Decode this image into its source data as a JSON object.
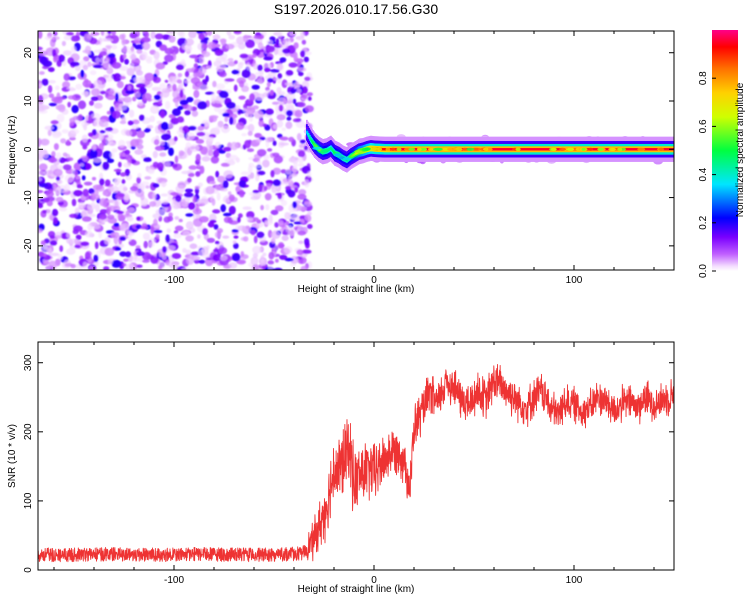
{
  "title": "S197.2026.010.17.56.G30",
  "chart_data": [
    {
      "type": "heatmap",
      "xlabel": "Height of straight line (km)",
      "ylabel": "Frequency (Hz)",
      "xlim": [
        -168,
        150
      ],
      "ylim": [
        -25,
        24.5
      ],
      "xticks": [
        -100,
        0,
        100
      ],
      "yticks": [
        -20,
        -10,
        0,
        10,
        20
      ],
      "colorbar": {
        "label": "Normalized spectral amplitude",
        "range": [
          0.0,
          1.0
        ],
        "ticks": [
          "0.0",
          "0.2",
          "0.4",
          "0.6",
          "0.8"
        ],
        "colormap": [
          "#ff00ff",
          "#8000ff",
          "#0000ff",
          "#00ffff",
          "#00ff00",
          "#ffff00",
          "#ff8000",
          "#ff0000"
        ]
      },
      "noise_region_x": [
        -168,
        -34
      ],
      "noise_amplitude_range": [
        0.02,
        0.2
      ],
      "ridge": {
        "x": [
          -34,
          -32,
          -30,
          -28,
          -26,
          -24,
          -22,
          -20,
          -18,
          -16,
          -14,
          -12,
          -10,
          -8,
          -6,
          -4,
          -2,
          0,
          5,
          10,
          20,
          40,
          60,
          80,
          100,
          120,
          150
        ],
        "frequency": [
          3.5,
          2.0,
          0.8,
          0.0,
          -0.5,
          -0.3,
          0.2,
          -0.8,
          -1.2,
          -1.8,
          -2.2,
          -1.5,
          -1.0,
          -0.5,
          -0.3,
          0.0,
          0.2,
          0.1,
          0.0,
          0.0,
          0.0,
          0.0,
          0.0,
          0.0,
          0.0,
          0.0,
          0.0
        ],
        "amplitude": [
          0.35,
          0.45,
          0.55,
          0.6,
          0.55,
          0.5,
          0.45,
          0.5,
          0.55,
          0.5,
          0.5,
          0.55,
          0.6,
          0.7,
          0.75,
          0.8,
          0.85,
          0.9,
          0.92,
          0.95,
          0.95,
          0.95,
          0.95,
          0.95,
          0.95,
          0.95,
          0.95
        ]
      }
    },
    {
      "type": "line",
      "xlabel": "Height of straight line (km)",
      "ylabel": "SNR (10 * v/v)",
      "xlim": [
        -168,
        150
      ],
      "ylim": [
        0,
        330
      ],
      "xticks": [
        -100,
        0,
        100
      ],
      "yticks": [
        0,
        100,
        200,
        300
      ],
      "color": "#ee3333",
      "series": [
        {
          "name": "SNR",
          "x": [
            -168,
            -150,
            -130,
            -110,
            -90,
            -70,
            -50,
            -36,
            -30,
            -25,
            -22,
            -20,
            -18,
            -15,
            -12,
            -10,
            -6,
            -2,
            0,
            4,
            8,
            12,
            16,
            18,
            20,
            24,
            28,
            32,
            36,
            40,
            44,
            48,
            52,
            56,
            60,
            64,
            68,
            72,
            76,
            80,
            84,
            88,
            92,
            96,
            100,
            104,
            108,
            112,
            116,
            120,
            124,
            128,
            132,
            136,
            140,
            144,
            150
          ],
          "values": [
            22,
            22,
            23,
            22,
            23,
            22,
            22,
            24,
            45,
            80,
            115,
            150,
            140,
            160,
            175,
            125,
            140,
            145,
            140,
            155,
            170,
            175,
            150,
            115,
            205,
            230,
            255,
            240,
            275,
            265,
            245,
            240,
            260,
            245,
            275,
            265,
            255,
            245,
            235,
            250,
            260,
            235,
            225,
            245,
            240,
            230,
            235,
            250,
            245,
            230,
            240,
            245,
            235,
            250,
            240,
            245,
            255
          ],
          "noise_band": {
            "x": [
              -168,
              -36,
              -30,
              -20,
              -10,
              0,
              10,
              20,
              30,
              60,
              100,
              150
            ],
            "spread": [
              10,
              10,
              35,
              60,
              60,
              50,
              40,
              40,
              35,
              35,
              30,
              30
            ]
          }
        }
      ]
    }
  ]
}
